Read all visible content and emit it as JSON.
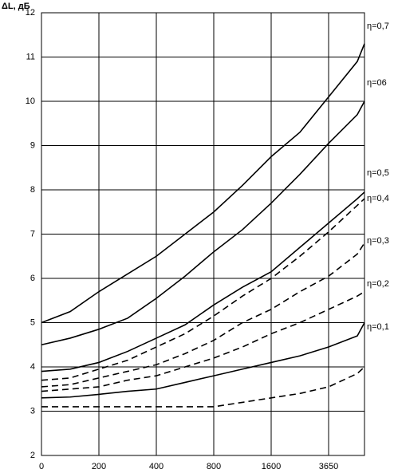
{
  "chart_data": {
    "type": "line",
    "y_label": "ΔL, дБ",
    "x": [
      0,
      0.5,
      1,
      1.5,
      2,
      2.5,
      3,
      3.5,
      4,
      4.5,
      5,
      5.5,
      5.625
    ],
    "xlim": [
      0,
      5.625
    ],
    "xticks": [
      0,
      {
        "value": 1,
        "label": "200"
      },
      {
        "value": 2,
        "label": "400"
      },
      {
        "value": 3,
        "label": "800"
      },
      {
        "value": 4,
        "label": "1600"
      },
      {
        "value": 5,
        "label": "3650"
      }
    ],
    "ylim": [
      2,
      12
    ],
    "yticks": [
      2,
      3,
      4,
      5,
      6,
      7,
      8,
      9,
      10,
      11,
      12
    ],
    "grid": true,
    "series": [
      {
        "name": "η=0,7",
        "color": "#000000",
        "dashed": false,
        "values": [
          5.0,
          5.25,
          5.7,
          6.1,
          6.5,
          7.0,
          7.5,
          8.1,
          8.75,
          9.3,
          10.1,
          10.9,
          11.3
        ]
      },
      {
        "name": "η=06",
        "color": "#000000",
        "dashed": false,
        "values": [
          4.5,
          4.65,
          4.85,
          5.1,
          5.55,
          6.05,
          6.6,
          7.1,
          7.7,
          8.35,
          9.05,
          9.7,
          10.0
        ]
      },
      {
        "name": "η=0,5",
        "color": "#000000",
        "dashed": false,
        "values": [
          3.9,
          3.95,
          4.1,
          4.35,
          4.65,
          4.95,
          5.4,
          5.8,
          6.15,
          6.7,
          7.25,
          7.8,
          7.95
        ]
      },
      {
        "name": "η=0,4",
        "color": "#000000",
        "dashed": true,
        "values": [
          3.7,
          3.75,
          3.95,
          4.15,
          4.45,
          4.75,
          5.15,
          5.6,
          6.0,
          6.5,
          7.05,
          7.65,
          7.8
        ]
      },
      {
        "name": "η=0,3",
        "color": "#000000",
        "dashed": true,
        "values": [
          3.55,
          3.6,
          3.75,
          3.9,
          4.05,
          4.3,
          4.6,
          5.0,
          5.3,
          5.7,
          6.05,
          6.55,
          6.8
        ]
      },
      {
        "name": "η=0,2",
        "color": "#000000",
        "dashed": true,
        "values": [
          3.45,
          3.5,
          3.55,
          3.7,
          3.8,
          4.0,
          4.2,
          4.45,
          4.75,
          5.0,
          5.3,
          5.6,
          5.7
        ]
      },
      {
        "name": "η=0,1",
        "color": "#000000",
        "dashed": false,
        "values": [
          3.3,
          3.32,
          3.38,
          3.45,
          3.5,
          3.65,
          3.8,
          3.95,
          4.1,
          4.25,
          4.45,
          4.7,
          5.0
        ]
      },
      {
        "color": "#000000",
        "dashed": true,
        "values": [
          3.1,
          3.1,
          3.1,
          3.1,
          3.1,
          3.1,
          3.1,
          3.2,
          3.3,
          3.4,
          3.55,
          3.85,
          4.0
        ]
      }
    ]
  }
}
